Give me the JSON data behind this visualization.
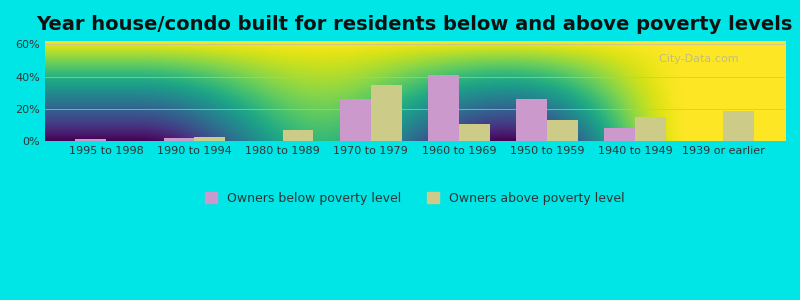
{
  "title": "Year house/condo built for residents below and above poverty levels",
  "categories": [
    "1995 to 1998",
    "1990 to 1994",
    "1980 to 1989",
    "1970 to 1979",
    "1960 to 1969",
    "1950 to 1959",
    "1940 to 1949",
    "1939 or earlier"
  ],
  "below_poverty": [
    1.5,
    2.0,
    0.0,
    26.0,
    41.0,
    26.0,
    8.5,
    0.0
  ],
  "above_poverty": [
    0.5,
    2.5,
    7.0,
    35.0,
    10.5,
    13.0,
    15.0,
    19.0
  ],
  "below_color": "#cc99cc",
  "above_color": "#cccc88",
  "ylim": [
    0,
    62
  ],
  "yticks": [
    0,
    20,
    40,
    60
  ],
  "ytick_labels": [
    "0%",
    "20%",
    "40%",
    "60%"
  ],
  "background_color": "#00e5e5",
  "plot_bg_gradient_top": "#e8f5e8",
  "plot_bg_gradient_bottom": "#ffffff",
  "bar_width": 0.35,
  "legend_below_label": "Owners below poverty level",
  "legend_above_label": "Owners above poverty level",
  "title_fontsize": 14,
  "tick_fontsize": 8,
  "legend_fontsize": 9
}
